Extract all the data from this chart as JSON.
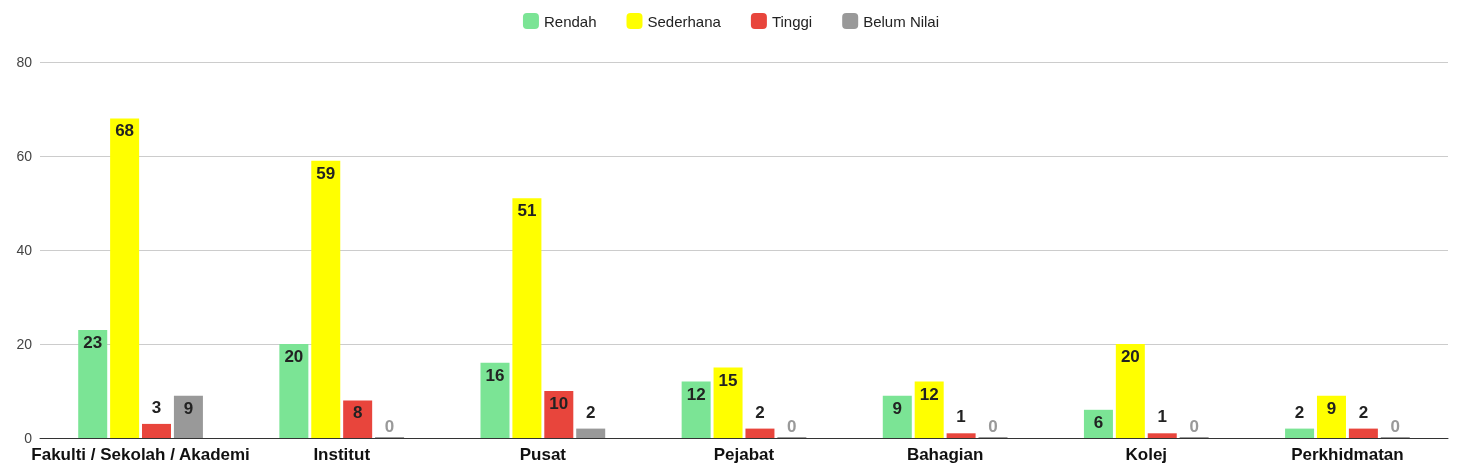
{
  "chart_data": {
    "type": "bar",
    "categories": [
      "Fakulti / Sekolah / Akademi",
      "Institut",
      "Pusat",
      "Pejabat",
      "Bahagian",
      "Kolej",
      "Perkhidmatan"
    ],
    "series": [
      {
        "name": "Rendah",
        "color": "#7be495",
        "values": [
          23,
          20,
          16,
          12,
          9,
          6,
          2
        ]
      },
      {
        "name": "Sederhana",
        "color": "#ffff00",
        "values": [
          68,
          59,
          51,
          15,
          12,
          20,
          9
        ]
      },
      {
        "name": "Tinggi",
        "color": "#e8453c",
        "values": [
          3,
          8,
          10,
          2,
          1,
          1,
          2
        ]
      },
      {
        "name": "Belum Nilai",
        "color": "#999999",
        "values": [
          9,
          0,
          2,
          0,
          0,
          0,
          0
        ]
      }
    ],
    "ylim": [
      0,
      80
    ],
    "yticks": [
      0,
      20,
      40,
      60,
      80
    ],
    "grid": "y",
    "legend": "top",
    "data_labels": true
  }
}
